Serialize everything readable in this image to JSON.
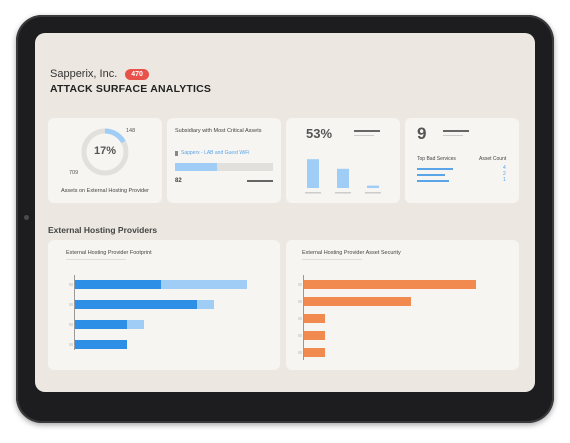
{
  "header": {
    "company": "Sapperix, Inc.",
    "badge": "470",
    "title": "ATTACK SURFACE ANALYTICS"
  },
  "cards": {
    "donut": {
      "percent": "17%",
      "value_top": "148",
      "value_left": "709",
      "caption": "Assets on External Hosting Provider",
      "fraction": 0.17
    },
    "subsidiary": {
      "title": "Subsidiary with Most Critical Assets",
      "link": "Sapperx - LAB and Guest WiFi",
      "count": "82"
    },
    "percent_card": {
      "value": "53%",
      "bars": [
        0.72,
        0.48,
        0.06
      ]
    },
    "services": {
      "value": "9",
      "col_left": "Top Bad Services",
      "col_right": "Asset Count",
      "counts": [
        "4",
        "2",
        "1"
      ]
    }
  },
  "section_title": "External Hosting Providers",
  "panels": {
    "footprint": {
      "title": "External Hosting Provider Footprint"
    },
    "security": {
      "title": "External Hosting Provider Asset Security"
    }
  },
  "chart_data": [
    {
      "type": "bar",
      "title": "External Hosting Provider Footprint",
      "orientation": "horizontal",
      "series": [
        {
          "values": [
            50,
            71,
            30,
            30
          ]
        },
        {
          "values": [
            100,
            81,
            40,
            30
          ]
        }
      ]
    },
    {
      "type": "bar",
      "title": "External Hosting Provider Asset Security",
      "orientation": "horizontal",
      "values": [
        100,
        62,
        12,
        12,
        12
      ]
    }
  ],
  "colors": {
    "accent_blue": "#2e8fe6",
    "light_blue": "#9fcdf5",
    "orange": "#f18a4f",
    "badge_red": "#e8524a"
  }
}
